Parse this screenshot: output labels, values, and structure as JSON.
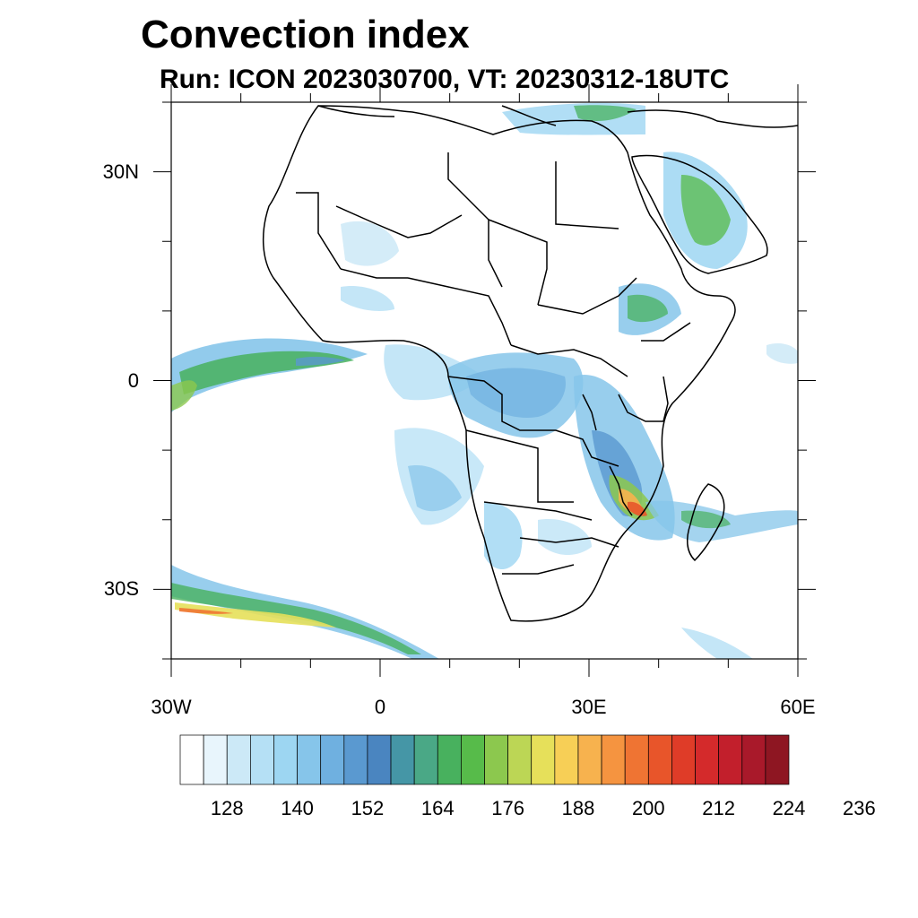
{
  "title": "Convection index",
  "subtitle": "Run: ICON 2023030700,  VT: 20230312-18UTC",
  "map": {
    "lat_ticks": [
      {
        "label": "30N",
        "lat": 30
      },
      {
        "label": "0",
        "lat": 0
      },
      {
        "label": "30S",
        "lat": -30
      }
    ],
    "lon_ticks": [
      {
        "label": "30W",
        "lon": -30
      },
      {
        "label": "0",
        "lon": 0
      },
      {
        "label": "30E",
        "lon": 30
      },
      {
        "label": "60E",
        "lon": 60
      }
    ],
    "extent": {
      "lon": [
        -30,
        60
      ],
      "lat": [
        -40,
        40
      ]
    }
  },
  "colorbar": {
    "colors": [
      "#ffffff",
      "#e8f5fc",
      "#cce9f7",
      "#b5e0f5",
      "#9dd6f2",
      "#86c5ea",
      "#6fb0e0",
      "#5a99d0",
      "#4a85c0",
      "#4596a6",
      "#4aa886",
      "#48b15e",
      "#57bb4a",
      "#8cc84e",
      "#bcd655",
      "#e6e05a",
      "#f7cf56",
      "#f7b24e",
      "#f59440",
      "#ef7433",
      "#e8552a",
      "#df3c28",
      "#d42a2b",
      "#c21f2c",
      "#a9192a",
      "#8e1622"
    ],
    "labels": [
      "128",
      "140",
      "152",
      "164",
      "176",
      "188",
      "200",
      "212",
      "224",
      "236"
    ]
  }
}
